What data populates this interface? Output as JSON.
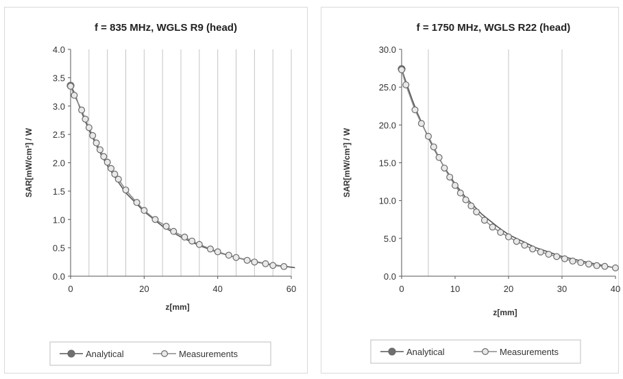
{
  "chart_data": [
    {
      "type": "line",
      "title": "f = 835 MHz, WGLS R9 (head)",
      "xlabel": "z[mm]",
      "ylabel": "SAR[mW/cm³] / W",
      "xlim": [
        0,
        60
      ],
      "ylim": [
        0,
        4.0
      ],
      "xticks": [
        0,
        20,
        40,
        60
      ],
      "xtick_labels": [
        "0",
        "20",
        "40",
        "60"
      ],
      "yticks": [
        0,
        0.5,
        1.0,
        1.5,
        2.0,
        2.5,
        3.0,
        3.5,
        4.0
      ],
      "ytick_labels": [
        "0.0",
        "0.5",
        "1.0",
        "1.5",
        "2.0",
        "2.5",
        "3.0",
        "3.5",
        "4.0"
      ],
      "vertical_grid_x": [
        5,
        10,
        15,
        20,
        25,
        30,
        35,
        40,
        45,
        50,
        55,
        60
      ],
      "legend_position": "bottom",
      "series": [
        {
          "name": "Analytical",
          "color": "#777777",
          "marker": "filled-circle",
          "x": [
            0,
            1,
            2,
            3,
            4,
            5,
            6,
            7,
            8,
            9,
            10,
            12,
            15,
            20,
            25,
            30,
            35,
            40,
            45,
            50,
            55,
            61
          ],
          "y": [
            3.36,
            3.24,
            3.06,
            2.89,
            2.73,
            2.58,
            2.44,
            2.31,
            2.18,
            2.06,
            1.95,
            1.75,
            1.47,
            1.14,
            0.88,
            0.69,
            0.54,
            0.42,
            0.33,
            0.26,
            0.2,
            0.15
          ]
        },
        {
          "name": "Measurements",
          "color": "#777777",
          "marker": "open-circle",
          "x": [
            0,
            1,
            3,
            4,
            5,
            6,
            7,
            8,
            9,
            10,
            11,
            12,
            13,
            15,
            18,
            20,
            23,
            26,
            28,
            31,
            33,
            35,
            38,
            40,
            43,
            45,
            48,
            50,
            53,
            55,
            58
          ],
          "y": [
            3.35,
            3.19,
            2.93,
            2.77,
            2.62,
            2.48,
            2.35,
            2.23,
            2.11,
            2.01,
            1.9,
            1.8,
            1.71,
            1.52,
            1.3,
            1.16,
            1.0,
            0.88,
            0.79,
            0.69,
            0.62,
            0.56,
            0.48,
            0.43,
            0.37,
            0.33,
            0.28,
            0.25,
            0.22,
            0.19,
            0.17
          ]
        }
      ]
    },
    {
      "type": "line",
      "title": "f = 1750 MHz, WGLS R22 (head)",
      "xlabel": "z[mm]",
      "ylabel": "SAR[mW/cm³] / W",
      "xlim": [
        0,
        40
      ],
      "ylim": [
        0,
        30.0
      ],
      "xticks": [
        0,
        10,
        20,
        30,
        40
      ],
      "xtick_labels": [
        "0",
        "10",
        "20",
        "30",
        "40"
      ],
      "yticks": [
        0,
        5,
        10,
        15,
        20,
        25,
        30
      ],
      "ytick_labels": [
        "0.0",
        "5.0",
        "10.0",
        "15.0",
        "20.0",
        "25.0",
        "30.0"
      ],
      "vertical_grid_x": [
        5,
        20,
        30
      ],
      "legend_position": "bottom",
      "series": [
        {
          "name": "Analytical",
          "color": "#777777",
          "marker": "filled-circle",
          "x": [
            0,
            1,
            2,
            3,
            4,
            5,
            6,
            7,
            8,
            10,
            12,
            15,
            18,
            20,
            25,
            30,
            35,
            40
          ],
          "y": [
            27.4,
            25.3,
            23.3,
            21.5,
            19.9,
            18.3,
            16.9,
            15.6,
            14.4,
            12.2,
            10.4,
            8.2,
            6.5,
            5.5,
            3.8,
            2.6,
            1.8,
            1.1
          ]
        },
        {
          "name": "Measurements",
          "color": "#777777",
          "marker": "open-circle",
          "x": [
            0,
            0.8,
            2.5,
            3.7,
            5,
            6,
            7,
            8,
            9,
            10,
            11,
            12,
            13,
            14,
            15.5,
            17,
            18.5,
            20,
            21.5,
            23,
            24.5,
            26,
            27.5,
            29,
            30.5,
            32,
            33.5,
            35,
            36.5,
            38,
            40
          ],
          "y": [
            27.3,
            25.3,
            22.0,
            20.2,
            18.5,
            17.1,
            15.7,
            14.3,
            13.1,
            12.0,
            11.0,
            10.1,
            9.3,
            8.5,
            7.4,
            6.5,
            5.8,
            5.2,
            4.6,
            4.1,
            3.6,
            3.2,
            2.9,
            2.6,
            2.3,
            2.0,
            1.8,
            1.6,
            1.4,
            1.3,
            1.1
          ]
        }
      ]
    }
  ]
}
